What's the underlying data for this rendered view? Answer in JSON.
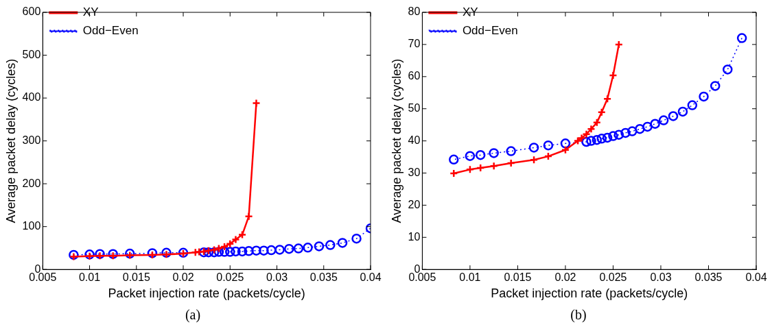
{
  "chart_data": [
    {
      "type": "line",
      "xlabel": "Packet injection rate (packets/cycle)",
      "ylabel": "Average packet delay (cycles)",
      "annotations": [
        "(a)"
      ],
      "xlim": [
        0.005,
        0.04
      ],
      "xticks": [
        0.005,
        0.01,
        0.015,
        0.02,
        0.025,
        0.03,
        0.035,
        0.04
      ],
      "ylim": [
        0,
        600
      ],
      "yticks": [
        0,
        100,
        200,
        300,
        400,
        500,
        600
      ],
      "legend": "top left",
      "series": [
        {
          "name": "XY",
          "color": "#ff0000",
          "marker": "cross",
          "line_style": "solid",
          "x": [
            0.0278,
            0.027,
            0.0263,
            0.0256,
            0.025,
            0.0244,
            0.0238,
            0.0233,
            0.0227,
            0.0222,
            0.0217,
            0.0213,
            0.02,
            0.0182,
            0.0167,
            0.0143,
            0.0125,
            0.0111,
            0.01,
            0.0083
          ],
          "values": [
            388,
            124,
            81,
            70,
            60,
            53,
            49,
            46,
            44,
            42,
            41,
            40,
            37,
            35,
            34,
            33,
            32,
            32,
            31,
            30
          ]
        },
        {
          "name": "Odd−Even",
          "color": "#0000ff",
          "marker": "circle",
          "line_style": "dotted",
          "x": [
            0.04,
            0.0385,
            0.037,
            0.0357,
            0.0345,
            0.0333,
            0.0323,
            0.0313,
            0.0303,
            0.0294,
            0.0286,
            0.0278,
            0.027,
            0.0263,
            0.0256,
            0.025,
            0.0244,
            0.0238,
            0.0233,
            0.0227,
            0.0222,
            0.02,
            0.0182,
            0.0167,
            0.0143,
            0.0125,
            0.0111,
            0.01,
            0.0083
          ],
          "values": [
            96,
            72,
            62,
            57,
            54,
            51,
            49,
            48,
            46,
            45,
            44,
            44,
            43,
            42,
            42,
            41,
            41,
            41,
            40,
            40,
            40,
            39,
            39,
            38,
            37,
            36,
            36,
            35,
            34
          ]
        }
      ]
    },
    {
      "type": "line",
      "xlabel": "Packet injection rate (packets/cycle)",
      "ylabel": "Average packet delay (cycles)",
      "annotations": [
        "(b)"
      ],
      "xlim": [
        0.005,
        0.04
      ],
      "xticks": [
        0.005,
        0.01,
        0.015,
        0.02,
        0.025,
        0.03,
        0.035,
        0.04
      ],
      "ylim": [
        0,
        80
      ],
      "yticks": [
        0,
        10,
        20,
        30,
        40,
        50,
        60,
        70,
        80
      ],
      "legend": "top left",
      "series": [
        {
          "name": "XY",
          "color": "#ff0000",
          "marker": "cross",
          "line_style": "solid",
          "x": [
            0.0256,
            0.025,
            0.0244,
            0.0238,
            0.0233,
            0.0227,
            0.0222,
            0.0217,
            0.0213,
            0.02,
            0.0182,
            0.0167,
            0.0143,
            0.0125,
            0.0111,
            0.01,
            0.0083
          ],
          "values": [
            70,
            60.4,
            53.1,
            48.9,
            45.7,
            43.7,
            42.1,
            40.9,
            40.0,
            37.2,
            35.2,
            34.1,
            33.1,
            32.2,
            31.6,
            31.1,
            29.9
          ]
        },
        {
          "name": "Odd−Even",
          "color": "#0000ff",
          "marker": "circle",
          "line_style": "dotted",
          "x": [
            0.0385,
            0.037,
            0.0357,
            0.0345,
            0.0333,
            0.0323,
            0.0313,
            0.0303,
            0.0294,
            0.0286,
            0.0278,
            0.027,
            0.0263,
            0.0256,
            0.025,
            0.0244,
            0.0238,
            0.0233,
            0.0227,
            0.0222,
            0.02,
            0.0182,
            0.0167,
            0.0143,
            0.0125,
            0.0111,
            0.01,
            0.0083
          ],
          "values": [
            72,
            62.2,
            57.1,
            53.8,
            51.1,
            49.1,
            47.7,
            46.4,
            45.3,
            44.4,
            43.7,
            43,
            42.5,
            41.9,
            41.5,
            41,
            40.7,
            40.3,
            40,
            39.7,
            39.2,
            38.6,
            37.9,
            36.8,
            36.2,
            35.6,
            35.3,
            34.2
          ]
        }
      ]
    }
  ]
}
